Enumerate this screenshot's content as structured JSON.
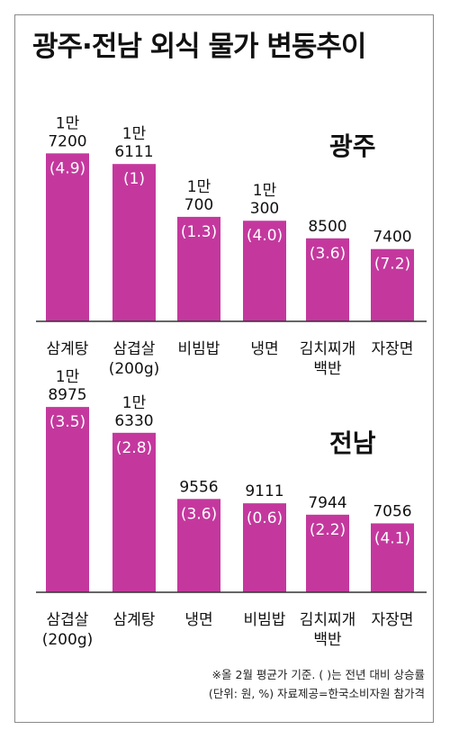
{
  "title": "광주·전남 외식 물가 변동추이",
  "colors": {
    "bar": "#c4389e",
    "axis": "#333333"
  },
  "chart_data": [
    {
      "type": "bar",
      "region": "광주",
      "categories": [
        [
          "삼계탕"
        ],
        [
          "삼겹살",
          "(200g)"
        ],
        [
          "비빔밥"
        ],
        [
          "냉면"
        ],
        [
          "김치찌개",
          "백반"
        ],
        [
          "자장면"
        ]
      ],
      "values": [
        17200,
        16111,
        10700,
        10300,
        8500,
        7400
      ],
      "value_labels": [
        [
          "1만",
          "7200"
        ],
        [
          "1만",
          "6111"
        ],
        [
          "1만",
          "700"
        ],
        [
          "1만",
          "300"
        ],
        [
          "8500"
        ],
        [
          "7400"
        ]
      ],
      "rates": [
        "(4.9)",
        "(1)",
        "(1.3)",
        "(4.0)",
        "(3.6)",
        "(7.2)"
      ],
      "change_pct": [
        4.9,
        1,
        1.3,
        4.0,
        3.6,
        7.2
      ]
    },
    {
      "type": "bar",
      "region": "전남",
      "categories": [
        [
          "삼겹살",
          "(200g)"
        ],
        [
          "삼계탕"
        ],
        [
          "냉면"
        ],
        [
          "비빔밥"
        ],
        [
          "김치찌개",
          "백반"
        ],
        [
          "자장면"
        ]
      ],
      "values": [
        18975,
        16330,
        9556,
        9111,
        7944,
        7056
      ],
      "value_labels": [
        [
          "1만",
          "8975"
        ],
        [
          "1만",
          "6330"
        ],
        [
          "9556"
        ],
        [
          "9111"
        ],
        [
          "7944"
        ],
        [
          "7056"
        ]
      ],
      "rates": [
        "(3.5)",
        "(2.8)",
        "(3.6)",
        "(0.6)",
        "(2.2)",
        "(4.1)"
      ],
      "change_pct": [
        3.5,
        2.8,
        3.6,
        0.6,
        2.2,
        4.1
      ]
    }
  ],
  "footnote": {
    "line1": "※올 2월 평균가 기준. ( )는 전년 대비 상승률",
    "line2": "(단위: 원, %) 자료제공=한국소비자원 참가격"
  }
}
